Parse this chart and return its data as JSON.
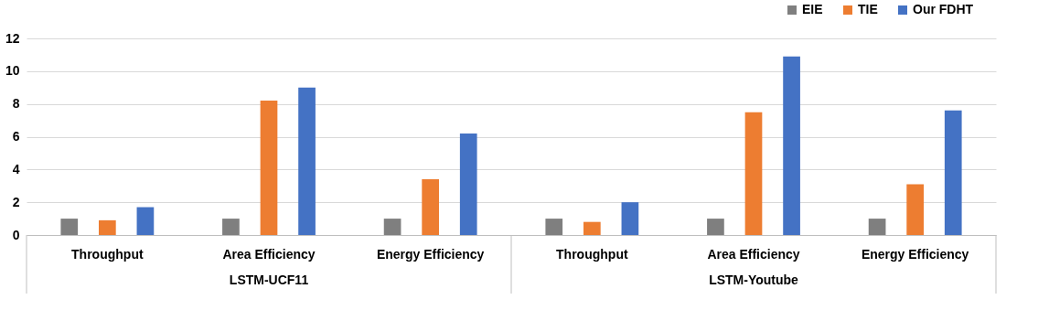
{
  "chart_data": {
    "type": "bar",
    "categories": [
      "Throughput",
      "Area Efficiency",
      "Energy Efficiency",
      "Throughput",
      "Area Efficiency",
      "Energy Efficiency"
    ],
    "series": [
      {
        "name": "EIE",
        "color": "#7f7f7f",
        "values": [
          1,
          1,
          1,
          1,
          1,
          1
        ]
      },
      {
        "name": "TIE",
        "color": "#ed7d31",
        "values": [
          0.9,
          8.2,
          3.4,
          0.8,
          7.5,
          3.1
        ]
      },
      {
        "name": "Our FDHT",
        "color": "#4472c4",
        "values": [
          1.7,
          9.0,
          6.2,
          2.0,
          10.9,
          7.6
        ]
      }
    ],
    "annotations": [
      "LSTM-UCF11",
      "LSTM-Youtube"
    ],
    "ylim": [
      0,
      12
    ],
    "yticks": [
      0,
      2,
      4,
      6,
      8,
      10,
      12
    ],
    "grid": "y",
    "legend": "top right"
  }
}
